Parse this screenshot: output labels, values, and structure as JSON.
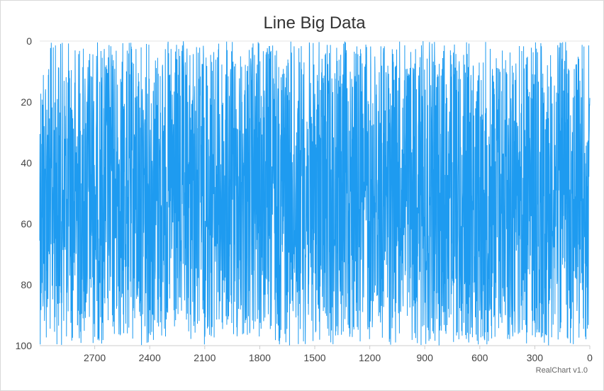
{
  "chart_data": {
    "type": "line",
    "title": "Line Big Data",
    "xlabel": "",
    "ylabel": "",
    "x_reversed": true,
    "y_reversed": true,
    "xlim": [
      0,
      3000
    ],
    "ylim": [
      0,
      100
    ],
    "x_ticks": [
      "2700",
      "2400",
      "2100",
      "1800",
      "1500",
      "1200",
      "900",
      "600",
      "300",
      "0"
    ],
    "y_ticks": [
      "0",
      "20",
      "40",
      "60",
      "80",
      "100"
    ],
    "grid": false,
    "legend": "none",
    "series": [
      {
        "color": "#1e9bf0",
        "point_count": 3000,
        "value_range": [
          0,
          100
        ],
        "distribution": "random values spread across the full 0–100 range"
      }
    ]
  },
  "credit": "RealChart v1.0"
}
